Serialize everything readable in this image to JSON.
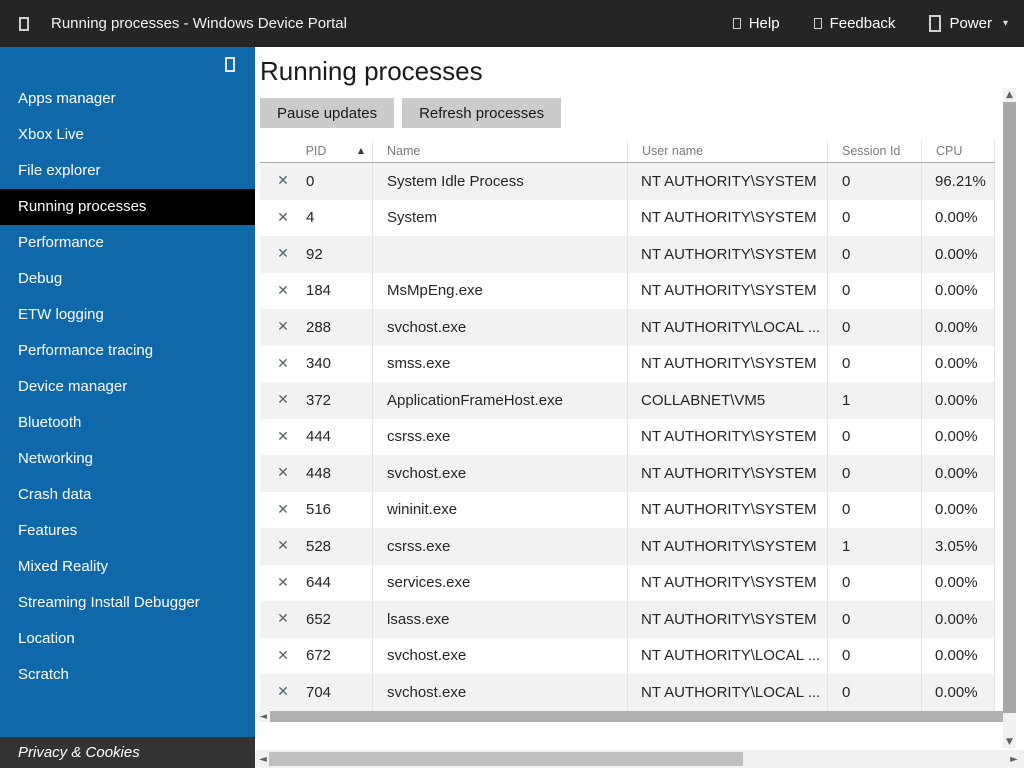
{
  "titlebar": {
    "title": "Running processes - Windows Device Portal",
    "help_label": "Help",
    "feedback_label": "Feedback",
    "power_label": "Power"
  },
  "sidebar": {
    "items": [
      {
        "label": "Apps manager",
        "active": false
      },
      {
        "label": "Xbox Live",
        "active": false
      },
      {
        "label": "File explorer",
        "active": false
      },
      {
        "label": "Running processes",
        "active": true
      },
      {
        "label": "Performance",
        "active": false
      },
      {
        "label": "Debug",
        "active": false
      },
      {
        "label": "ETW logging",
        "active": false
      },
      {
        "label": "Performance tracing",
        "active": false
      },
      {
        "label": "Device manager",
        "active": false
      },
      {
        "label": "Bluetooth",
        "active": false
      },
      {
        "label": "Networking",
        "active": false
      },
      {
        "label": "Crash data",
        "active": false
      },
      {
        "label": "Features",
        "active": false
      },
      {
        "label": "Mixed Reality",
        "active": false
      },
      {
        "label": "Streaming Install Debugger",
        "active": false
      },
      {
        "label": "Location",
        "active": false
      },
      {
        "label": "Scratch",
        "active": false
      }
    ],
    "footer": "Privacy & Cookies"
  },
  "main": {
    "heading": "Running processes",
    "pause_label": "Pause updates",
    "refresh_label": "Refresh processes",
    "table": {
      "columns": [
        "PID",
        "Name",
        "User name",
        "Session Id",
        "CPU"
      ],
      "rows": [
        {
          "pid": "0",
          "name": "System Idle Process",
          "user": "NT AUTHORITY\\SYSTEM",
          "session": "0",
          "cpu": "96.21%"
        },
        {
          "pid": "4",
          "name": "System",
          "user": "NT AUTHORITY\\SYSTEM",
          "session": "0",
          "cpu": "0.00%"
        },
        {
          "pid": "92",
          "name": "",
          "user": "NT AUTHORITY\\SYSTEM",
          "session": "0",
          "cpu": "0.00%"
        },
        {
          "pid": "184",
          "name": "MsMpEng.exe",
          "user": "NT AUTHORITY\\SYSTEM",
          "session": "0",
          "cpu": "0.00%"
        },
        {
          "pid": "288",
          "name": "svchost.exe",
          "user": "NT AUTHORITY\\LOCAL ...",
          "session": "0",
          "cpu": "0.00%"
        },
        {
          "pid": "340",
          "name": "smss.exe",
          "user": "NT AUTHORITY\\SYSTEM",
          "session": "0",
          "cpu": "0.00%"
        },
        {
          "pid": "372",
          "name": "ApplicationFrameHost.exe",
          "user": "COLLABNET\\VM5",
          "session": "1",
          "cpu": "0.00%"
        },
        {
          "pid": "444",
          "name": "csrss.exe",
          "user": "NT AUTHORITY\\SYSTEM",
          "session": "0",
          "cpu": "0.00%"
        },
        {
          "pid": "448",
          "name": "svchost.exe",
          "user": "NT AUTHORITY\\SYSTEM",
          "session": "0",
          "cpu": "0.00%"
        },
        {
          "pid": "516",
          "name": "wininit.exe",
          "user": "NT AUTHORITY\\SYSTEM",
          "session": "0",
          "cpu": "0.00%"
        },
        {
          "pid": "528",
          "name": "csrss.exe",
          "user": "NT AUTHORITY\\SYSTEM",
          "session": "1",
          "cpu": "3.05%"
        },
        {
          "pid": "644",
          "name": "services.exe",
          "user": "NT AUTHORITY\\SYSTEM",
          "session": "0",
          "cpu": "0.00%"
        },
        {
          "pid": "652",
          "name": "lsass.exe",
          "user": "NT AUTHORITY\\SYSTEM",
          "session": "0",
          "cpu": "0.00%"
        },
        {
          "pid": "672",
          "name": "svchost.exe",
          "user": "NT AUTHORITY\\LOCAL ...",
          "session": "0",
          "cpu": "0.00%"
        },
        {
          "pid": "704",
          "name": "svchost.exe",
          "user": "NT AUTHORITY\\LOCAL ...",
          "session": "0",
          "cpu": "0.00%"
        }
      ]
    }
  },
  "icons": {
    "kill": "✕",
    "sort_asc": "▲",
    "caret_down": "▾",
    "scroll_left": "◄",
    "scroll_right": "►",
    "scroll_up": "▲",
    "scroll_down": "▼"
  },
  "colors": {
    "titlebar_bg": "#252525",
    "sidebar_bg": "#0f68a9",
    "active_item_bg": "#000000",
    "footer_bg": "#333333",
    "button_bg": "#cbcbcb",
    "row_alt_bg": "#f2f2f2"
  }
}
